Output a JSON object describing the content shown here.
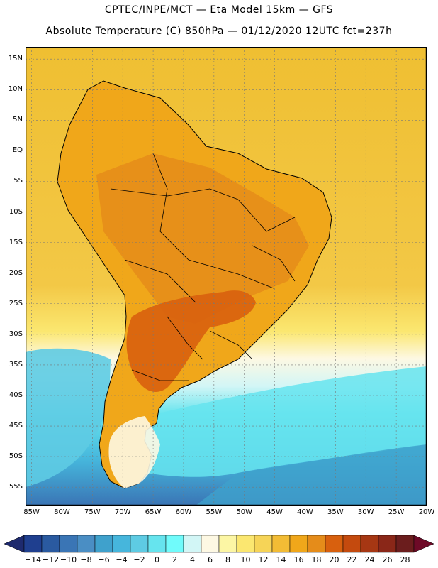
{
  "header": {
    "line1": "CPTEC/INPE/MCT —  Eta Model 15km — GFS",
    "line2": "Absolute Temperature (C) 850hPa — 01/12/2020 12UTC fct=237h"
  },
  "map": {
    "extent": {
      "lon_min": -86,
      "lon_max": -20,
      "lat_min": -58,
      "lat_max": 17
    },
    "lat_labels": [
      {
        "lat": 15,
        "label": "15N"
      },
      {
        "lat": 10,
        "label": "10N"
      },
      {
        "lat": 5,
        "label": "5N"
      },
      {
        "lat": 0,
        "label": "EQ"
      },
      {
        "lat": -5,
        "label": "5S"
      },
      {
        "lat": -10,
        "label": "10S"
      },
      {
        "lat": -15,
        "label": "15S"
      },
      {
        "lat": -20,
        "label": "20S"
      },
      {
        "lat": -25,
        "label": "25S"
      },
      {
        "lat": -30,
        "label": "30S"
      },
      {
        "lat": -35,
        "label": "35S"
      },
      {
        "lat": -40,
        "label": "40S"
      },
      {
        "lat": -45,
        "label": "45S"
      },
      {
        "lat": -50,
        "label": "50S"
      },
      {
        "lat": -55,
        "label": "55S"
      }
    ],
    "lon_labels": [
      {
        "lon": -85,
        "label": "85W"
      },
      {
        "lon": -80,
        "label": "80W"
      },
      {
        "lon": -75,
        "label": "75W"
      },
      {
        "lon": -70,
        "label": "70W"
      },
      {
        "lon": -65,
        "label": "65W"
      },
      {
        "lon": -60,
        "label": "60W"
      },
      {
        "lon": -55,
        "label": "55W"
      },
      {
        "lon": -50,
        "label": "50W"
      },
      {
        "lon": -45,
        "label": "45W"
      },
      {
        "lon": -40,
        "label": "40W"
      },
      {
        "lon": -35,
        "label": "35W"
      },
      {
        "lon": -30,
        "label": "30W"
      },
      {
        "lon": -25,
        "label": "25W"
      },
      {
        "lon": -20,
        "label": "20W"
      }
    ]
  },
  "colorbar": {
    "unit": "C",
    "labels": [
      "-14",
      "-12",
      "-10",
      "-8",
      "-6",
      "-4",
      "-2",
      "0",
      "2",
      "4",
      "6",
      "8",
      "10",
      "12",
      "14",
      "16",
      "18",
      "20",
      "22",
      "24",
      "26",
      "28"
    ],
    "colors": [
      "#1f3f8f",
      "#2a5aa0",
      "#3a75b5",
      "#4a8ec4",
      "#3fa1cc",
      "#46b6dc",
      "#5ecbe3",
      "#66e4ee",
      "#70fbfb",
      "#d2f6f6",
      "#fdf8e3",
      "#fcf6a4",
      "#fbe770",
      "#f6d457",
      "#f2bc35",
      "#f0a71a",
      "#e58c1a",
      "#d8600e",
      "#c44a0e",
      "#a63713",
      "#8a2718",
      "#6b1d1d"
    ],
    "low_arrow_color": "#1e2a6e",
    "high_arrow_color": "#6e0a27"
  },
  "field": {
    "ocean_north_color": "#efbf32",
    "ocean_mid_color": "#f6d457",
    "ocean_south_color": "#5ce9f0",
    "land_color": "#f0a71a",
    "warm_core_color": "#d8600e",
    "border_color": "#000000"
  }
}
